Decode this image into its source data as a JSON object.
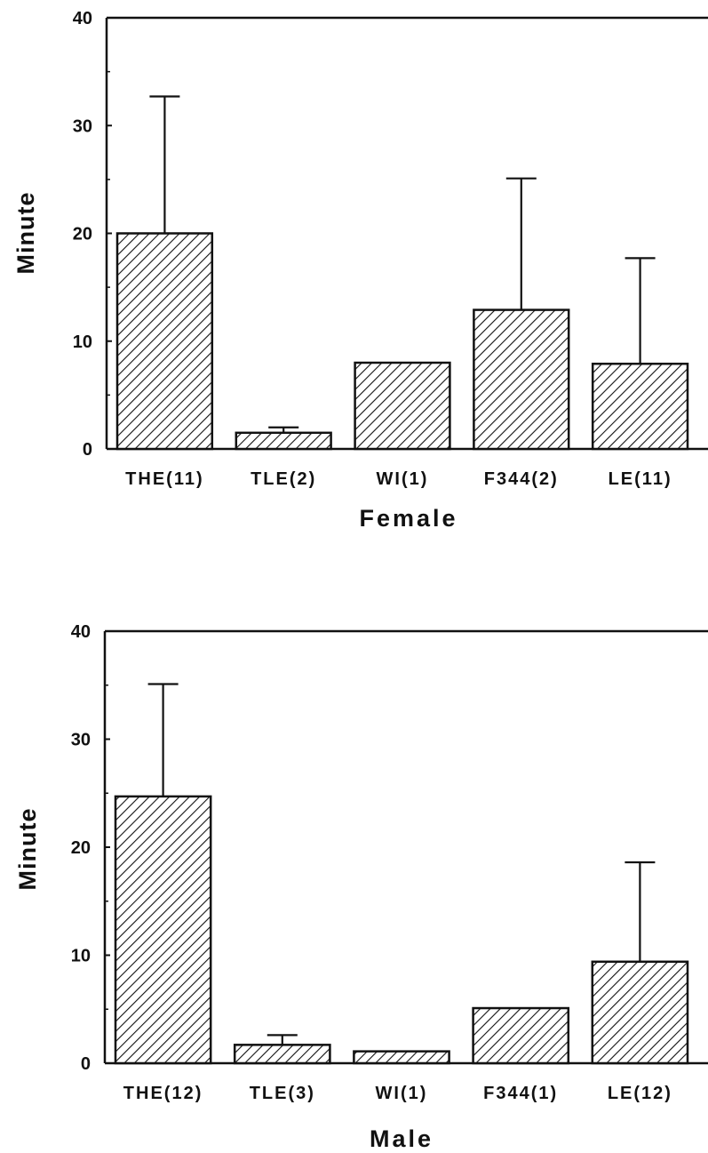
{
  "chart_data": [
    {
      "type": "bar",
      "ylabel": "Minute",
      "xlabel": "Female",
      "ylim": [
        0,
        40
      ],
      "yticks": [
        "0",
        "10",
        "20",
        "30",
        "40"
      ],
      "categories": [
        "THE(11)",
        "TLE(2)",
        "WI(1)",
        "F344(2)",
        "LE(11)"
      ],
      "values": [
        20,
        1.5,
        8,
        12.9,
        7.9
      ],
      "error_upper": [
        32.7,
        2.0,
        null,
        25.1,
        17.7
      ],
      "fill": "diagonal-hatch",
      "color": "#111111"
    },
    {
      "type": "bar",
      "ylabel": "Minute",
      "xlabel": "Male",
      "ylim": [
        0,
        40
      ],
      "yticks": [
        "0",
        "10",
        "20",
        "30",
        "40"
      ],
      "categories": [
        "THE(12)",
        "TLE(3)",
        "WI(1)",
        "F344(1)",
        "LE(12)"
      ],
      "values": [
        24.7,
        1.7,
        1.1,
        5.1,
        9.4
      ],
      "error_upper": [
        35.1,
        2.6,
        null,
        null,
        18.6
      ],
      "fill": "diagonal-hatch",
      "color": "#111111"
    }
  ]
}
